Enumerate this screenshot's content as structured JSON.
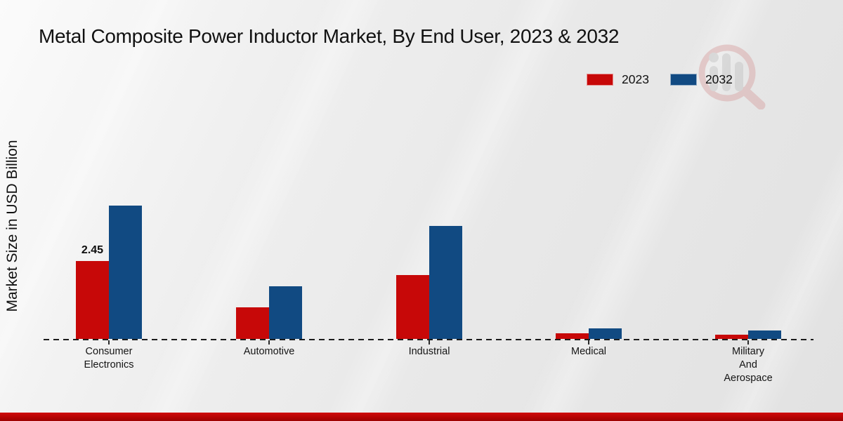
{
  "chart_data": {
    "type": "bar",
    "title": "Metal Composite Power Inductor Market, By End User, 2023 & 2032",
    "ylabel": "Market Size in USD Billion",
    "categories": [
      "Consumer\nElectronics",
      "Automotive",
      "Industrial",
      "Medical",
      "Military\nAnd\nAerospace"
    ],
    "series": [
      {
        "name": "2023",
        "color": "#c70808",
        "values": [
          2.45,
          1.0,
          2.0,
          0.18,
          0.13
        ],
        "data_labels": [
          "2.45",
          "",
          "",
          "",
          ""
        ]
      },
      {
        "name": "2032",
        "color": "#114a82",
        "values": [
          4.2,
          1.65,
          3.55,
          0.33,
          0.27
        ],
        "data_labels": [
          "",
          "",
          "",
          "",
          ""
        ]
      }
    ],
    "ylim": [
      0,
      4.6
    ],
    "grid": false,
    "legend_position": "top-right",
    "x_axis_style": "dashed",
    "y_axis_ticks_visible": false
  },
  "watermark": {
    "icon": "magnifier-bars-logo",
    "accent_color": "#d9a7a7",
    "bar_color": "#c6c6c6"
  },
  "footer": {
    "accent_color": "#c00000"
  }
}
